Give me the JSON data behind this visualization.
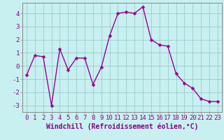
{
  "x": [
    0,
    1,
    2,
    3,
    4,
    5,
    6,
    7,
    8,
    9,
    10,
    11,
    12,
    13,
    14,
    15,
    16,
    17,
    18,
    19,
    20,
    21,
    22,
    23
  ],
  "y": [
    -0.7,
    0.8,
    0.7,
    -3.0,
    1.3,
    -0.3,
    0.6,
    0.6,
    -1.4,
    -0.1,
    2.3,
    4.0,
    4.1,
    4.0,
    4.5,
    2.0,
    1.6,
    1.5,
    -0.6,
    -1.3,
    -1.7,
    -2.5,
    -2.7,
    -2.7
  ],
  "line_color": "#990099",
  "marker_color": "#990099",
  "bg_color": "#c8f0f0",
  "grid_color": "#99cccc",
  "xlabel": "Windchill (Refroidissement éolien,°C)",
  "ylim": [
    -3.5,
    4.8
  ],
  "xlim": [
    -0.5,
    23.5
  ],
  "yticks": [
    -3,
    -2,
    -1,
    0,
    1,
    2,
    3,
    4
  ],
  "xticks": [
    0,
    1,
    2,
    3,
    4,
    5,
    6,
    7,
    8,
    9,
    10,
    11,
    12,
    13,
    14,
    15,
    16,
    17,
    18,
    19,
    20,
    21,
    22,
    23
  ],
  "tick_fontsize": 6.5,
  "xlabel_fontsize": 7.0,
  "line_width": 1.0,
  "marker_size": 2.5,
  "text_color": "#880088"
}
